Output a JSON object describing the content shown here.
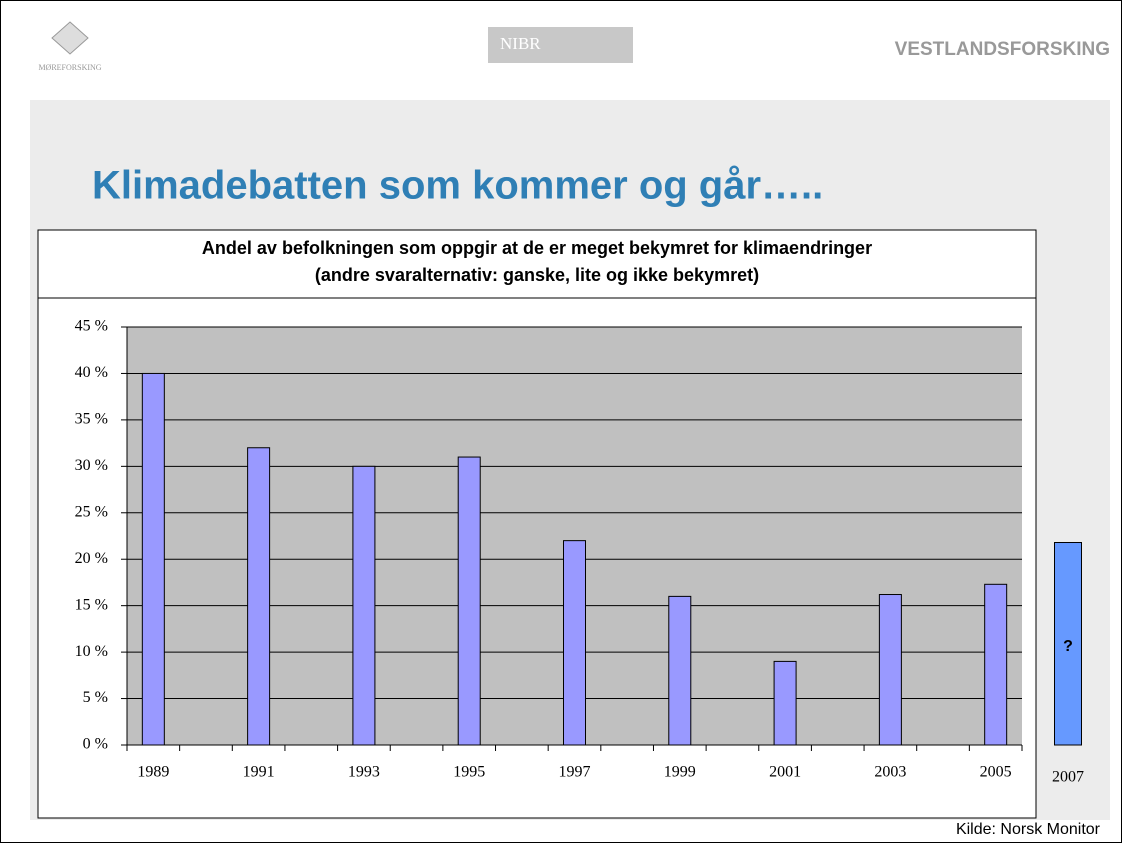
{
  "header": {
    "logos": [
      "MØREFORSKING",
      "NIBR",
      "VESTLANDSFORSKING"
    ]
  },
  "slide_title": "Klimadebatten som kommer og går…..",
  "chart_data": {
    "type": "bar",
    "title": [
      "Andel av befolkningen som oppgir at de er meget bekymret for klimaendringer",
      "(andre svaralternativ: ganske, lite og ikke bekymret)"
    ],
    "categories": [
      "1989",
      null,
      "1991",
      null,
      "1993",
      null,
      "1995",
      null,
      "1997",
      null,
      "1999",
      null,
      "2001",
      null,
      "2003",
      null,
      "2005"
    ],
    "values": [
      40,
      null,
      32,
      null,
      30,
      null,
      31,
      null,
      22,
      null,
      16,
      null,
      9,
      null,
      16.2,
      null,
      17.3
    ],
    "color": "#9999ff",
    "ylim": [
      0,
      45
    ],
    "yticks": [
      {
        "value": 0,
        "label": "0 %"
      },
      {
        "value": 5,
        "label": "5 %"
      },
      {
        "value": 10,
        "label": "10 %"
      },
      {
        "value": 15,
        "label": "15 %"
      },
      {
        "value": 20,
        "label": "20 %"
      },
      {
        "value": 25,
        "label": "25 %"
      },
      {
        "value": 30,
        "label": "30 %"
      },
      {
        "value": 35,
        "label": "35 %"
      },
      {
        "value": 40,
        "label": "40 %"
      },
      {
        "value": 45,
        "label": "45 %"
      }
    ],
    "grid": true,
    "extra_bar": {
      "category": "2007",
      "value": 21.8,
      "label": "?",
      "color": "#6699ff"
    }
  },
  "source": "Kilde: Norsk Monitor"
}
